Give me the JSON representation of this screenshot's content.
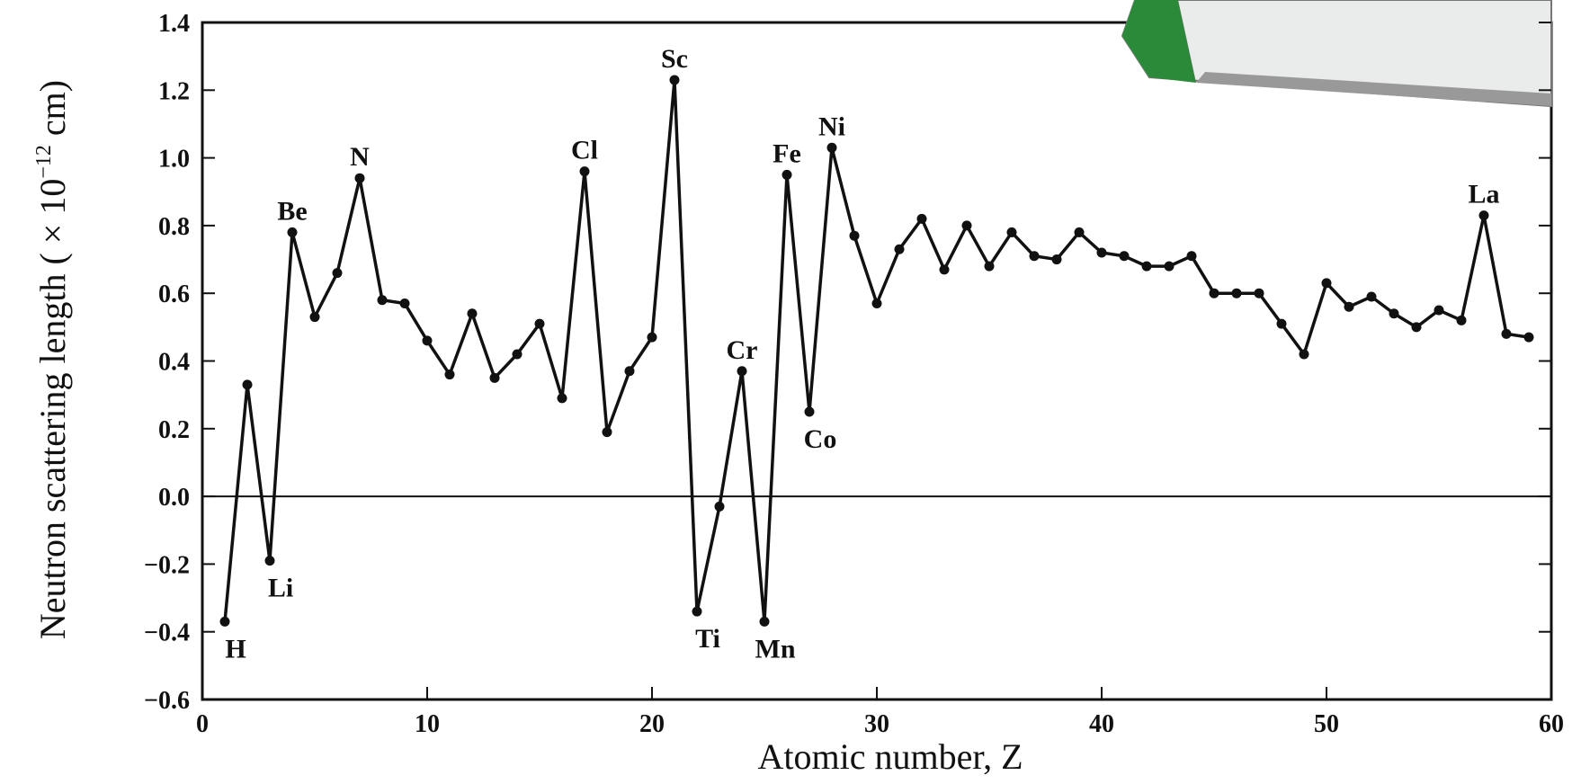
{
  "chart_data": {
    "type": "line",
    "xlabel": "Atomic  number, Z",
    "ylabel": "Neutron scattering length ( × 10",
    "ylabel_exponent": "−12",
    "ylabel_end": " cm)",
    "x": [
      1,
      2,
      3,
      4,
      5,
      6,
      7,
      8,
      9,
      10,
      11,
      12,
      13,
      14,
      15,
      16,
      17,
      18,
      19,
      20,
      21,
      22,
      23,
      24,
      25,
      26,
      27,
      28,
      29,
      30,
      31,
      32,
      33,
      34,
      35,
      36,
      37,
      38,
      39,
      40,
      41,
      42,
      43,
      44,
      45,
      46,
      47,
      48,
      49,
      50,
      51,
      52,
      53,
      54,
      55,
      56,
      57,
      58,
      59
    ],
    "series": [
      {
        "color": "#111111",
        "values": [
          -0.37,
          0.33,
          -0.19,
          0.78,
          0.53,
          0.66,
          0.94,
          0.58,
          0.57,
          0.46,
          0.36,
          0.54,
          0.35,
          0.42,
          0.51,
          0.29,
          0.96,
          0.19,
          0.37,
          0.47,
          1.23,
          -0.34,
          -0.03,
          0.37,
          -0.37,
          0.95,
          0.25,
          1.03,
          0.77,
          0.57,
          0.73,
          0.82,
          0.67,
          0.8,
          0.68,
          0.78,
          0.71,
          0.7,
          0.78,
          0.72,
          0.71,
          0.68,
          0.68,
          0.71,
          0.6,
          0.6,
          0.6,
          0.51,
          0.42,
          0.63,
          0.56,
          0.59,
          0.54,
          0.5,
          0.55,
          0.52,
          0.83,
          0.48,
          0.47
        ]
      }
    ],
    "annotations": [
      {
        "text": "H",
        "x": 1
      },
      {
        "text": "Li",
        "x": 3
      },
      {
        "text": "Be",
        "x": 4
      },
      {
        "text": "N",
        "x": 7
      },
      {
        "text": "Cl",
        "x": 17
      },
      {
        "text": "Sc",
        "x": 21
      },
      {
        "text": "Ti",
        "x": 22
      },
      {
        "text": "Cr",
        "x": 24
      },
      {
        "text": "Mn",
        "x": 25
      },
      {
        "text": "Fe",
        "x": 26
      },
      {
        "text": "Co",
        "x": 27
      },
      {
        "text": "Ni",
        "x": 28
      },
      {
        "text": "La",
        "x": 57
      }
    ],
    "xlim": [
      0,
      60
    ],
    "xticks": [
      0,
      10,
      20,
      30,
      40,
      50,
      60
    ],
    "ylim": [
      -0.6,
      1.4
    ],
    "yticks": [
      {
        "value": -0.6,
        "label": "−0.6"
      },
      {
        "value": -0.4,
        "label": "−0.4"
      },
      {
        "value": -0.2,
        "label": "−0.2"
      },
      {
        "value": 0,
        "label": "0.0"
      },
      {
        "value": 0.2,
        "label": "0.2"
      },
      {
        "value": 0.4,
        "label": "0.4"
      },
      {
        "value": 0.6,
        "label": "0.6"
      },
      {
        "value": 0.8,
        "label": "0.8"
      },
      {
        "value": 1.0,
        "label": "1.0"
      },
      {
        "value": 1.2,
        "label": "1.2"
      },
      {
        "value": 1.4,
        "label": "1.4"
      }
    ]
  }
}
